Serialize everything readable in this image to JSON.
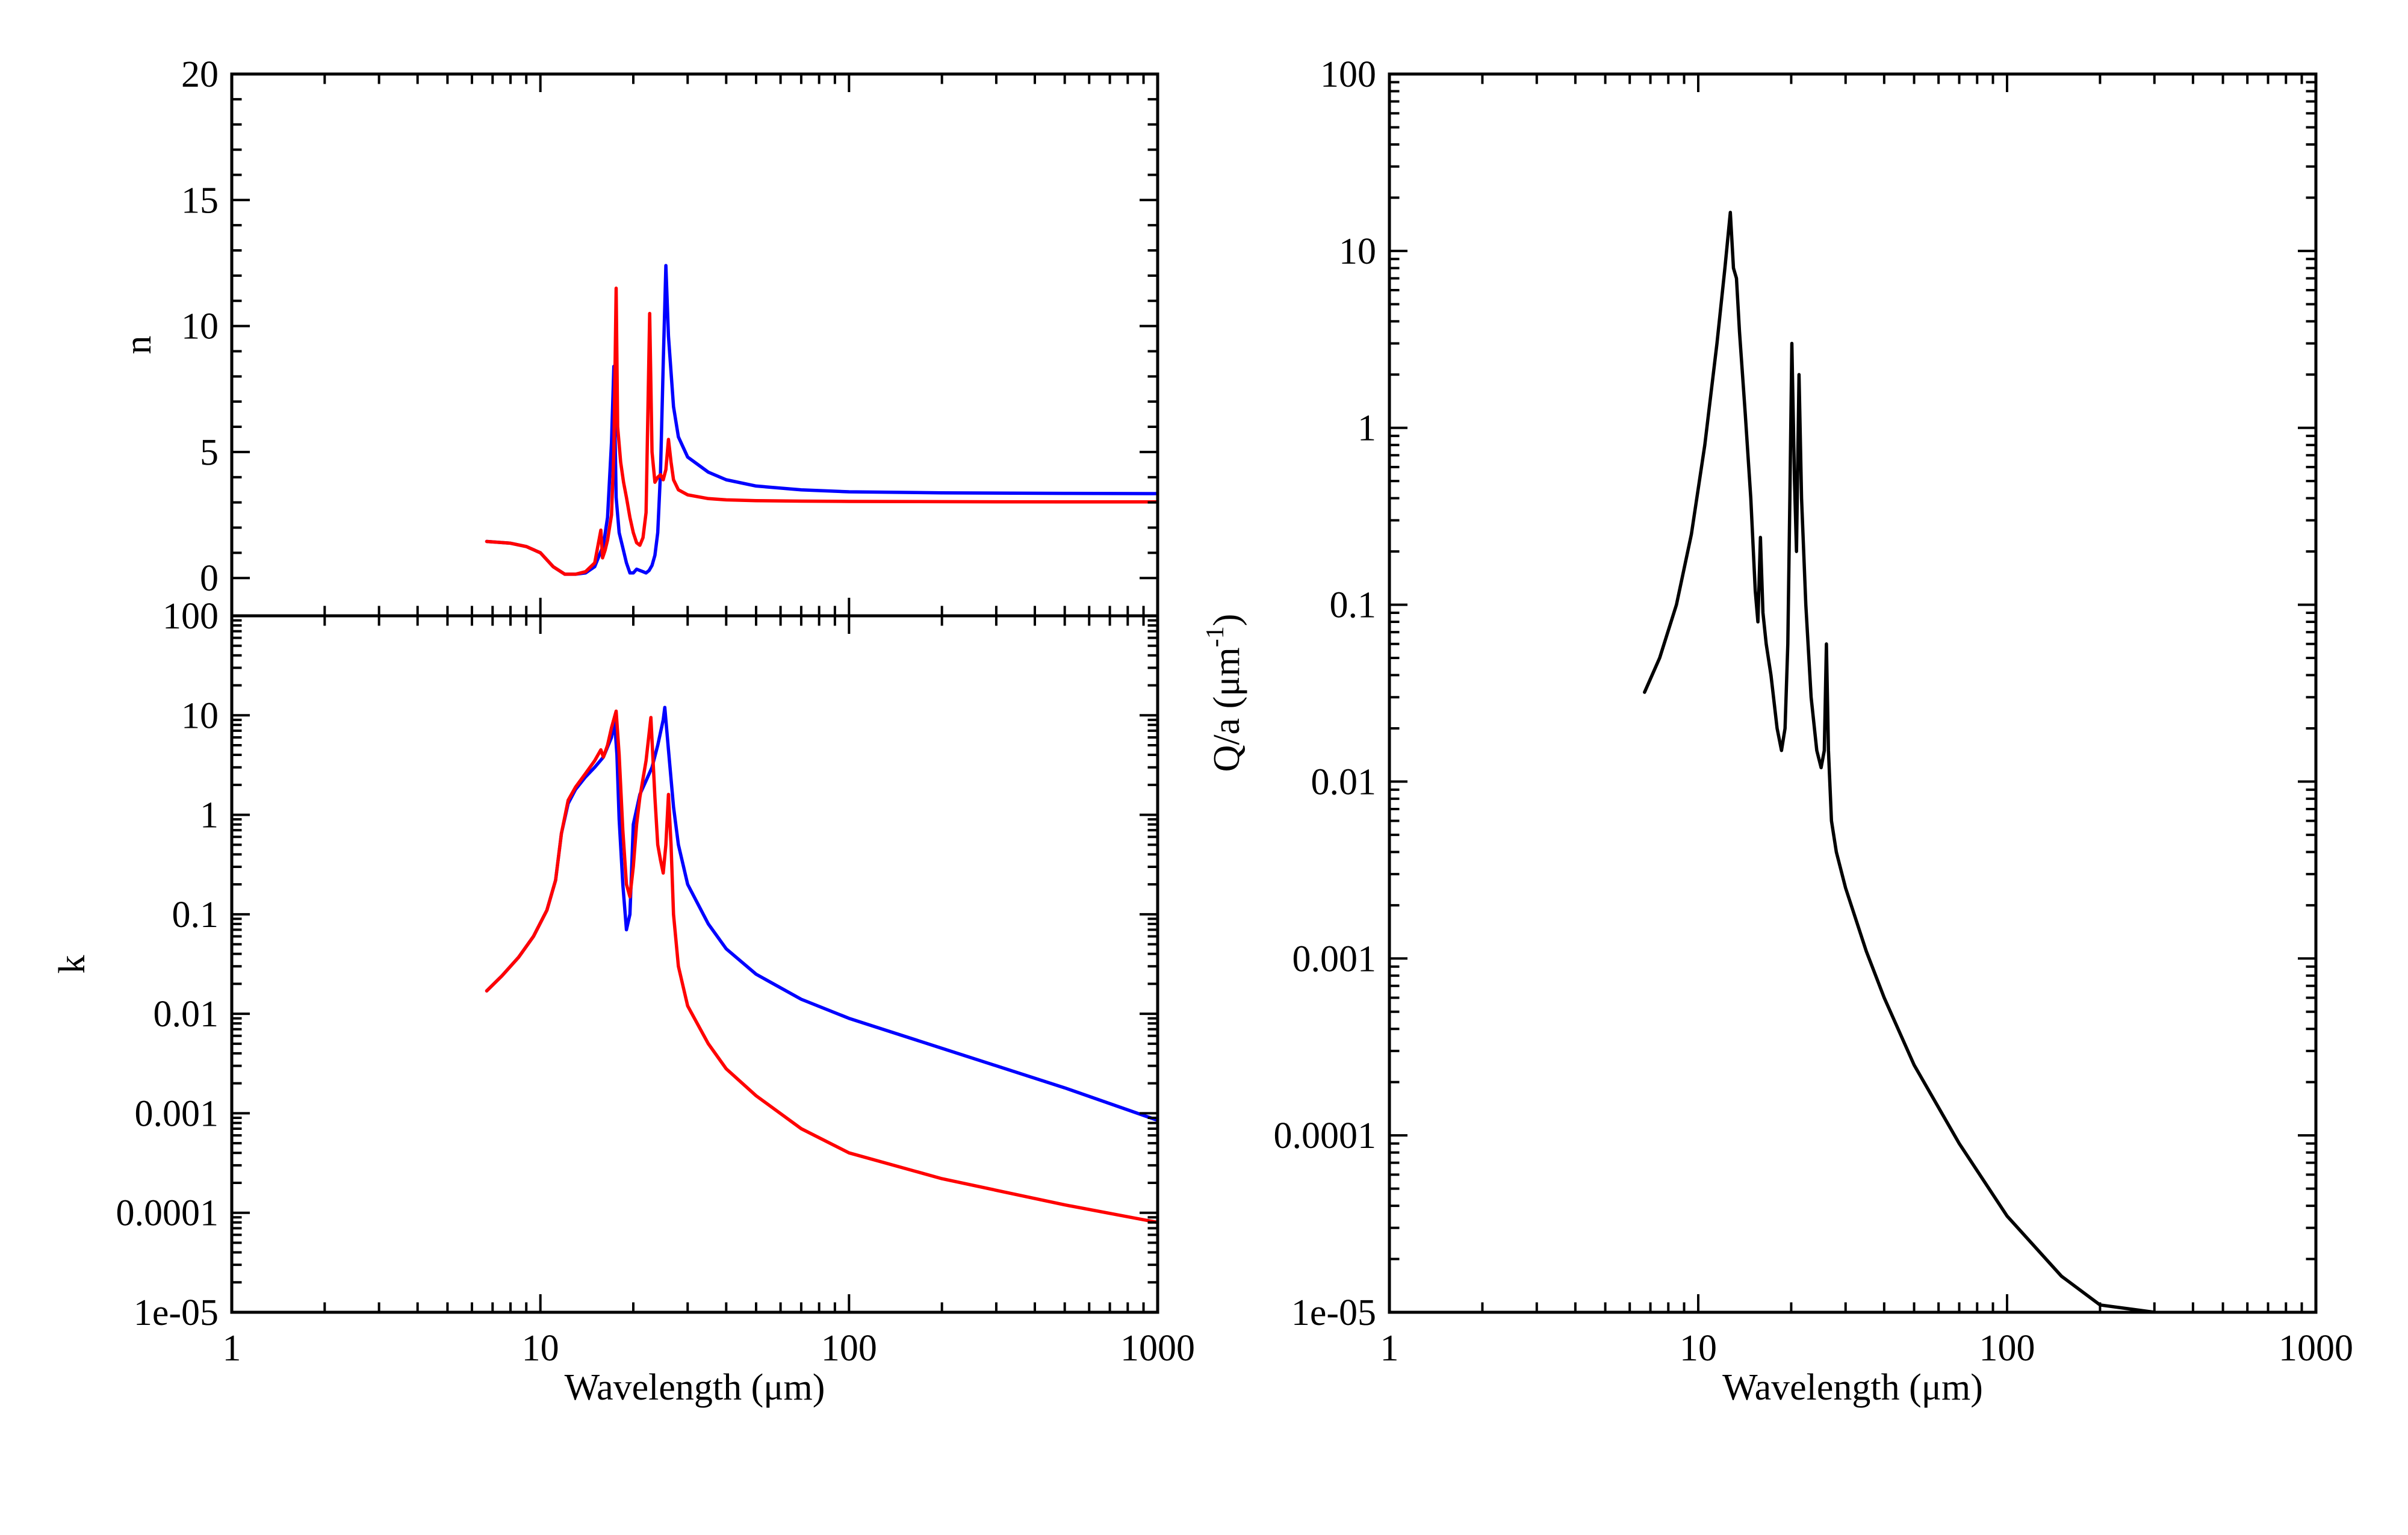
{
  "colors": {
    "blue_series": "#0000ff",
    "red_series": "#ff0000",
    "black_series": "#000000",
    "axes": "#000000",
    "background": "#ffffff"
  },
  "chart_data": [
    {
      "id": "n-panel",
      "type": "line",
      "xscale": "log",
      "xlim": [
        1,
        1000
      ],
      "ylim": [
        -1.5,
        20
      ],
      "xlabel": "",
      "ylabel": "n",
      "xticks": [
        1,
        10,
        100,
        1000
      ],
      "xtick_labels": [],
      "yticks": [
        0,
        5,
        10,
        15,
        20
      ],
      "ytick_labels": [
        "0",
        "5",
        "10",
        "15",
        "20"
      ],
      "grid": false,
      "series": [
        {
          "color": "blue",
          "x": [
            6.7,
            8,
            9,
            10,
            11,
            12,
            13,
            14,
            15,
            16,
            16.5,
            17,
            17.3,
            17.6,
            18,
            18.5,
            19,
            19.5,
            20,
            20.5,
            21,
            21.5,
            22,
            22.5,
            23,
            23.5,
            24,
            24.5,
            25,
            25.5,
            26,
            27,
            28,
            30,
            35,
            40,
            50,
            70,
            100,
            200,
            500,
            1000
          ],
          "y": [
            1.45,
            1.38,
            1.25,
            1.0,
            0.45,
            0.15,
            0.15,
            0.2,
            0.45,
            1.3,
            2.4,
            5.4,
            8.4,
            3.2,
            1.8,
            1.2,
            0.6,
            0.2,
            0.2,
            0.35,
            0.3,
            0.25,
            0.2,
            0.3,
            0.5,
            0.9,
            1.8,
            4.2,
            8.5,
            12.4,
            9.6,
            6.8,
            5.6,
            4.8,
            4.2,
            3.9,
            3.65,
            3.5,
            3.42,
            3.38,
            3.36,
            3.35
          ]
        },
        {
          "color": "red",
          "x": [
            6.7,
            8,
            9,
            10,
            11,
            12,
            13,
            14,
            15,
            15.7,
            15.9,
            16.2,
            16.5,
            17,
            17.3,
            17.6,
            17.8,
            18.2,
            18.6,
            19,
            19.5,
            20,
            20.5,
            21,
            21.5,
            22,
            22.6,
            23,
            23.5,
            24,
            24.5,
            25,
            25.5,
            26,
            26.5,
            27,
            28,
            30,
            35,
            40,
            50,
            70,
            100,
            200,
            500,
            1000
          ],
          "y": [
            1.45,
            1.38,
            1.25,
            1.0,
            0.45,
            0.15,
            0.15,
            0.25,
            0.6,
            1.9,
            0.8,
            1.1,
            1.5,
            2.5,
            5.0,
            11.5,
            6.0,
            4.6,
            3.8,
            3.2,
            2.4,
            1.8,
            1.4,
            1.3,
            1.6,
            2.6,
            10.5,
            5.0,
            3.8,
            4.0,
            4.1,
            3.9,
            4.3,
            5.5,
            4.6,
            3.9,
            3.5,
            3.3,
            3.15,
            3.1,
            3.07,
            3.05,
            3.04,
            3.03,
            3.02,
            3.02
          ]
        }
      ]
    },
    {
      "id": "k-panel",
      "type": "line",
      "xscale": "log",
      "yscale": "log",
      "xlim": [
        1,
        1000
      ],
      "ylim": [
        1e-05,
        100
      ],
      "xlabel": "Wavelength (μm)",
      "ylabel": "k",
      "xticks": [
        1,
        10,
        100,
        1000
      ],
      "xtick_labels": [
        "1",
        "10",
        "100",
        "1000"
      ],
      "yticks": [
        1e-05,
        0.0001,
        0.001,
        0.01,
        0.1,
        1,
        10,
        100
      ],
      "ytick_labels": [
        "1e-05",
        "0.0001",
        "0.001",
        "0.01",
        "0.1",
        "1",
        "10",
        "100"
      ],
      "grid": false,
      "series": [
        {
          "color": "blue",
          "x": [
            6.7,
            7.5,
            8.5,
            9.5,
            10.5,
            11.2,
            11.7,
            12.3,
            13,
            14,
            15,
            16,
            17,
            17.4,
            17.7,
            18,
            18.5,
            19,
            19.5,
            20,
            21,
            22,
            23,
            24,
            25,
            25.3,
            26,
            27,
            28,
            30,
            35,
            40,
            50,
            70,
            100,
            200,
            500,
            1000
          ],
          "y": [
            0.017,
            0.024,
            0.037,
            0.06,
            0.11,
            0.22,
            0.65,
            1.3,
            1.8,
            2.4,
            3.0,
            3.8,
            6.0,
            8.5,
            4.0,
            0.9,
            0.2,
            0.07,
            0.1,
            0.8,
            1.6,
            2.2,
            3.0,
            5.0,
            9.0,
            12.0,
            4.5,
            1.2,
            0.5,
            0.2,
            0.08,
            0.045,
            0.025,
            0.014,
            0.009,
            0.0045,
            0.0018,
            0.00085
          ]
        },
        {
          "color": "red",
          "x": [
            6.7,
            7.5,
            8.5,
            9.5,
            10.5,
            11.2,
            11.7,
            12.3,
            13,
            14,
            15,
            15.7,
            16,
            16.5,
            17,
            17.6,
            18,
            18.5,
            19,
            19.5,
            20,
            20.5,
            21,
            22,
            22.8,
            23.5,
            24,
            24.5,
            25,
            25.5,
            26,
            26.5,
            27,
            28,
            30,
            35,
            40,
            50,
            70,
            100,
            200,
            500,
            1000
          ],
          "y": [
            0.017,
            0.024,
            0.037,
            0.06,
            0.11,
            0.22,
            0.65,
            1.4,
            1.9,
            2.6,
            3.5,
            4.5,
            3.8,
            5.0,
            7.5,
            11.0,
            4.0,
            0.7,
            0.2,
            0.15,
            0.3,
            0.8,
            1.5,
            3.5,
            9.5,
            1.5,
            0.5,
            0.35,
            0.26,
            0.5,
            1.6,
            0.5,
            0.1,
            0.03,
            0.012,
            0.005,
            0.0028,
            0.0015,
            0.0007,
            0.0004,
            0.00022,
            0.00012,
            8e-05
          ]
        }
      ]
    },
    {
      "id": "q-panel",
      "type": "line",
      "xscale": "log",
      "yscale": "log",
      "xlim": [
        1,
        1000
      ],
      "ylim": [
        1e-05,
        100
      ],
      "xlabel": "Wavelength (μm)",
      "ylabel": "Q/a (μm",
      "ylabel_sup": "-1",
      "ylabel_end": ")",
      "xticks": [
        1,
        10,
        100,
        1000
      ],
      "xtick_labels": [
        "1",
        "10",
        "100",
        "1000"
      ],
      "yticks": [
        1e-05,
        0.0001,
        0.001,
        0.01,
        0.1,
        1,
        10,
        100
      ],
      "ytick_labels": [
        "1e-05",
        "0.0001",
        "0.001",
        "0.01",
        "0.1",
        "1",
        "10",
        "100"
      ],
      "grid": false,
      "series": [
        {
          "color": "black",
          "x": [
            6.7,
            7.5,
            8.5,
            9.5,
            10.5,
            11.5,
            12.2,
            12.7,
            13.0,
            13.3,
            13.6,
            14.2,
            14.8,
            15.3,
            15.6,
            15.9,
            16.2,
            16.6,
            17.2,
            18,
            18.6,
            19.1,
            19.5,
            19.8,
            20.1,
            20.5,
            20.8,
            21.2,
            21.6,
            22.3,
            23.2,
            24.2,
            25,
            25.6,
            26.0,
            26.4,
            27,
            28,
            30,
            35,
            40,
            50,
            70,
            100,
            150,
            200,
            300
          ],
          "y": [
            0.032,
            0.05,
            0.1,
            0.25,
            0.8,
            3.0,
            8.0,
            16.5,
            8.0,
            7.0,
            3.5,
            1.2,
            0.4,
            0.12,
            0.08,
            0.24,
            0.09,
            0.06,
            0.04,
            0.02,
            0.015,
            0.02,
            0.06,
            0.4,
            3.0,
            0.5,
            0.2,
            2.0,
            0.4,
            0.1,
            0.03,
            0.015,
            0.012,
            0.015,
            0.06,
            0.015,
            0.006,
            0.004,
            0.0025,
            0.0011,
            0.0006,
            0.00025,
            9e-05,
            3.5e-05,
            1.6e-05,
            1.1e-05,
            1e-05
          ]
        }
      ]
    }
  ]
}
